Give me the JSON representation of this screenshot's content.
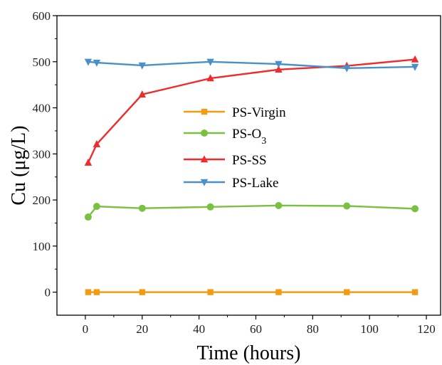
{
  "chart_data": {
    "type": "line",
    "xlabel": "Time (hours)",
    "ylabel": "Cu (μg/L)",
    "xlim": [
      -10,
      125
    ],
    "ylim": [
      -50,
      600
    ],
    "xticks": [
      0,
      20,
      40,
      60,
      80,
      100,
      120
    ],
    "yticks": [
      0,
      100,
      200,
      300,
      400,
      500,
      600
    ],
    "grid": false,
    "legend_position": "center",
    "series": [
      {
        "name": "PS-Virgin",
        "color": "#f39c12",
        "marker": "square",
        "x": [
          1,
          4,
          20,
          44,
          68,
          92,
          116
        ],
        "y": [
          0,
          0,
          0,
          0,
          0,
          0,
          0
        ]
      },
      {
        "name": "PS-O",
        "name_subscript": "3",
        "color": "#7ac142",
        "marker": "circle",
        "x": [
          1,
          4,
          20,
          44,
          68,
          92,
          116
        ],
        "y": [
          163,
          186,
          182,
          185,
          188,
          187,
          181
        ]
      },
      {
        "name": "PS-SS",
        "color": "#ee2c2c",
        "marker": "triangle-up",
        "x": [
          1,
          4,
          20,
          44,
          68,
          92,
          116
        ],
        "y": [
          281,
          321,
          429,
          464,
          483,
          491,
          505
        ]
      },
      {
        "name": "PS-Lake",
        "color": "#4a90c8",
        "marker": "triangle-down",
        "x": [
          1,
          4,
          20,
          44,
          68,
          92,
          116
        ],
        "y": [
          500,
          498,
          492,
          500,
          495,
          486,
          489
        ]
      }
    ]
  }
}
